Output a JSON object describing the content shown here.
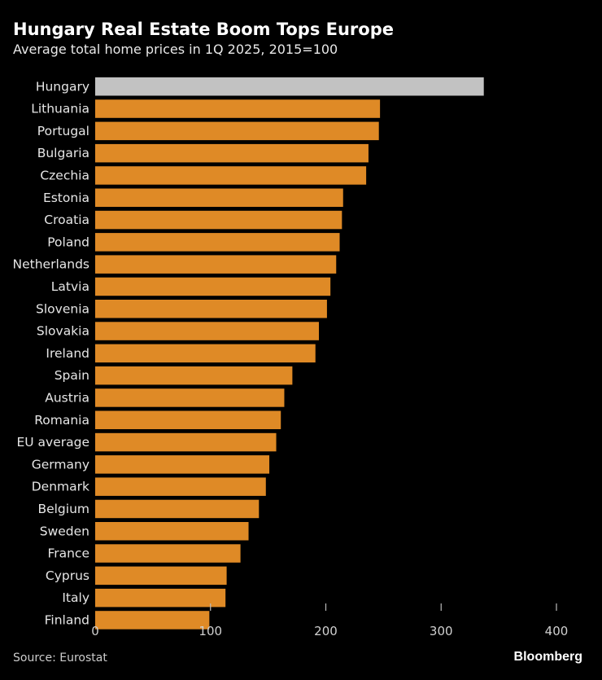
{
  "chart_data": {
    "type": "bar",
    "orientation": "horizontal",
    "title": "Hungary Real Estate Boom Tops Europe",
    "subtitle": "Average total home prices in 1Q 2025, 2015=100",
    "categories": [
      "Hungary",
      "Lithuania",
      "Portugal",
      "Bulgaria",
      "Czechia",
      "Estonia",
      "Croatia",
      "Poland",
      "Netherlands",
      "Latvia",
      "Slovenia",
      "Slovakia",
      "Ireland",
      "Spain",
      "Austria",
      "Romania",
      "EU average",
      "Germany",
      "Denmark",
      "Belgium",
      "Sweden",
      "France",
      "Cyprus",
      "Italy",
      "Finland"
    ],
    "values": [
      337,
      247,
      246,
      237,
      235,
      215,
      214,
      212,
      209,
      204,
      201,
      194,
      191,
      171,
      164,
      161,
      157,
      151,
      148,
      142,
      133,
      126,
      114,
      113,
      99
    ],
    "highlight": "Hungary",
    "xlim": [
      0,
      400
    ],
    "xticks": [
      "0",
      "100",
      "200",
      "300",
      "400"
    ],
    "grid": false,
    "colors": {
      "bar": "#df8a26",
      "highlight": "#c2c2c2",
      "background": "#000000"
    }
  },
  "source": "Source: Eurostat",
  "logo": "Bloomberg"
}
